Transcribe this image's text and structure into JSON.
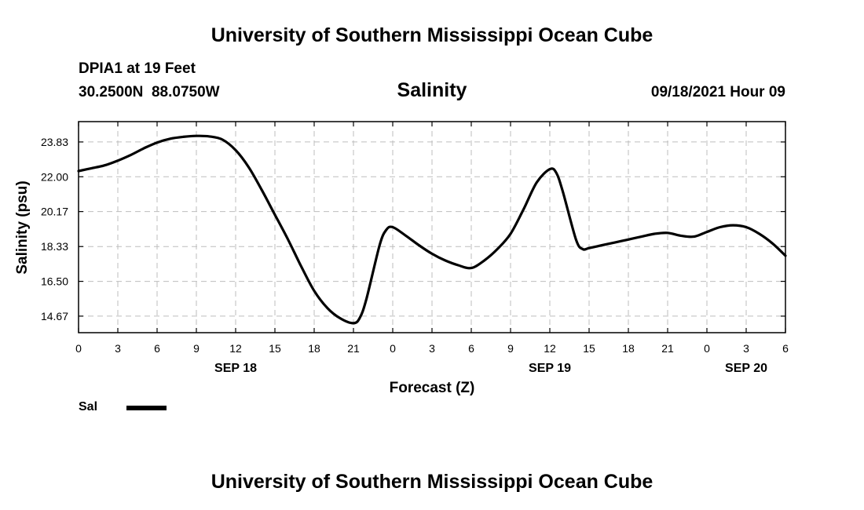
{
  "header": {
    "title": "University of Southern Mississippi Ocean Cube",
    "station": "DPIA1 at 19 Feet",
    "coords": "30.2500N  88.0750W",
    "parameter": "Salinity",
    "timestamp": "09/18/2021 Hour 09"
  },
  "footer": {
    "title": "University of Southern Mississippi Ocean Cube"
  },
  "legend": {
    "label": "Sal",
    "color": "#000000"
  },
  "chart_data": {
    "type": "line",
    "title": "Salinity",
    "xlabel": "Forecast (Z)",
    "ylabel": "Salinity (psu)",
    "x_unit": "hours from 00Z SEP 18",
    "xlim": [
      0,
      54
    ],
    "ylim": [
      13.8,
      24.9
    ],
    "grid": true,
    "legend_position": "bottom-left",
    "x_ticks": [
      0,
      3,
      6,
      9,
      12,
      15,
      18,
      21,
      24,
      27,
      30,
      33,
      36,
      39,
      42,
      45,
      48,
      51,
      54
    ],
    "x_tick_labels": [
      "0",
      "3",
      "6",
      "9",
      "12",
      "15",
      "18",
      "21",
      "0",
      "3",
      "6",
      "9",
      "12",
      "15",
      "18",
      "21",
      "0",
      "3",
      "6"
    ],
    "date_labels": [
      {
        "x": 12,
        "label": "SEP 18"
      },
      {
        "x": 36,
        "label": "SEP 19"
      },
      {
        "x": 51,
        "label": "SEP 20"
      }
    ],
    "y_ticks": [
      14.67,
      16.5,
      18.33,
      20.17,
      22.0,
      23.83
    ],
    "y_tick_labels": [
      "14.67",
      "16.50",
      "18.33",
      "20.17",
      "22.00",
      "23.83"
    ],
    "series": [
      {
        "name": "Sal",
        "color": "#000000",
        "x": [
          0,
          1,
          2,
          3,
          4,
          5,
          6,
          7,
          8,
          9,
          10,
          11,
          12,
          13,
          14,
          15,
          16,
          17,
          18,
          19,
          20,
          21,
          21.5,
          22,
          23,
          23.5,
          24,
          25,
          26,
          27,
          28,
          29,
          30,
          31,
          32,
          33,
          34,
          35,
          36,
          36.5,
          37,
          38,
          38.5,
          39,
          40,
          41,
          42,
          43,
          44,
          45,
          46,
          47,
          48,
          49,
          50,
          51,
          52,
          53,
          54
        ],
        "values": [
          22.3,
          22.45,
          22.6,
          22.85,
          23.15,
          23.5,
          23.8,
          24.0,
          24.1,
          24.15,
          24.12,
          23.95,
          23.4,
          22.5,
          21.3,
          20.0,
          18.7,
          17.3,
          16.0,
          15.1,
          14.55,
          14.3,
          14.6,
          15.6,
          18.4,
          19.2,
          19.35,
          18.9,
          18.4,
          17.95,
          17.6,
          17.35,
          17.2,
          17.6,
          18.2,
          19.0,
          20.3,
          21.7,
          22.4,
          22.2,
          21.2,
          18.7,
          18.2,
          18.25,
          18.4,
          18.55,
          18.7,
          18.85,
          19.0,
          19.05,
          18.9,
          18.85,
          19.1,
          19.35,
          19.45,
          19.35,
          19.0,
          18.5,
          17.85
        ]
      }
    ]
  }
}
